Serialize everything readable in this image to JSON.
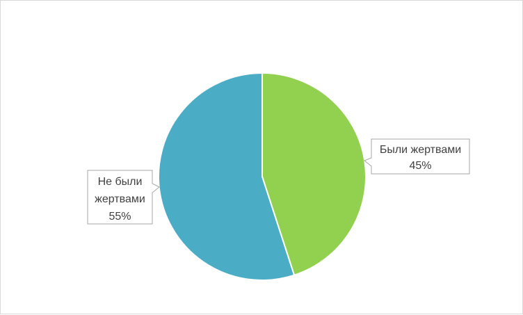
{
  "chart_data": {
    "type": "pie",
    "start_angle_deg": 0,
    "direction": "clockwise",
    "slices": [
      {
        "label_lines": [
          "Были жертвами"
        ],
        "value_label": "45%",
        "value": 45,
        "color": "#92d050"
      },
      {
        "label_lines": [
          "Не были",
          "жертвами"
        ],
        "value_label": "55%",
        "value": 55,
        "color": "#4bacc6"
      }
    ],
    "legend": "none",
    "data_labels": "callouts"
  }
}
